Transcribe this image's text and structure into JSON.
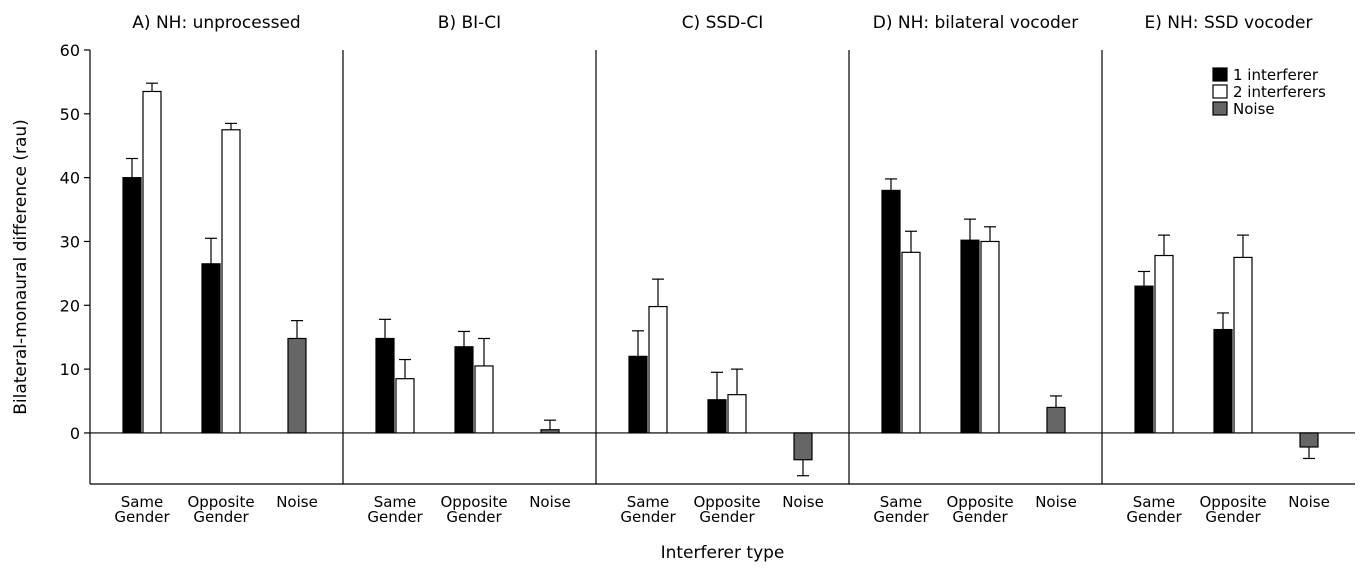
{
  "chart_data": {
    "type": "bar",
    "ylabel": "Bilateral-monaural difference (rau)",
    "xlabel": "Interferer type",
    "ylim": [
      -8,
      60
    ],
    "yticks": [
      0,
      10,
      20,
      30,
      40,
      50,
      60
    ],
    "categories": [
      "Same Gender",
      "Opposite Gender",
      "Noise"
    ],
    "category_lines": [
      [
        "Same",
        "Gender"
      ],
      [
        "Opposite",
        "Gender"
      ],
      [
        "Noise"
      ]
    ],
    "legend": {
      "placement": "top-right",
      "entries": [
        "1 interferer",
        "2 interferers",
        "Noise"
      ]
    },
    "series_colors": {
      "1 interferer": "#000000",
      "2 interferers": "#ffffff",
      "Noise": "#666666"
    },
    "panels": [
      {
        "title": "A) NH: unprocessed",
        "bars": {
          "one_interferer": [
            {
              "value": 40,
              "error": 3
            },
            {
              "value": 26.5,
              "error": 4
            }
          ],
          "two_interferers": [
            {
              "value": 53.5,
              "error": 1.3
            },
            {
              "value": 47.5,
              "error": 1
            }
          ],
          "noise": {
            "value": 14.8,
            "error": 2.8
          }
        }
      },
      {
        "title": "B) BI-CI",
        "bars": {
          "one_interferer": [
            {
              "value": 14.8,
              "error": 3
            },
            {
              "value": 13.5,
              "error": 2.4
            }
          ],
          "two_interferers": [
            {
              "value": 8.5,
              "error": 3
            },
            {
              "value": 10.5,
              "error": 4.3
            }
          ],
          "noise": {
            "value": 0.5,
            "error": 1.5
          }
        }
      },
      {
        "title": "C) SSD-CI",
        "bars": {
          "one_interferer": [
            {
              "value": 12,
              "error": 4
            },
            {
              "value": 5.2,
              "error": 4.3
            }
          ],
          "two_interferers": [
            {
              "value": 19.8,
              "error": 4.3
            },
            {
              "value": 6,
              "error": 4
            }
          ],
          "noise": {
            "value": -4.2,
            "error": 2.5
          }
        }
      },
      {
        "title": "D) NH: bilateral vocoder",
        "bars": {
          "one_interferer": [
            {
              "value": 38,
              "error": 1.8
            },
            {
              "value": 30.2,
              "error": 3.3
            }
          ],
          "two_interferers": [
            {
              "value": 28.3,
              "error": 3.3
            },
            {
              "value": 30,
              "error": 2.3
            }
          ],
          "noise": {
            "value": 4,
            "error": 1.8
          }
        }
      },
      {
        "title": "E) NH: SSD vocoder",
        "bars": {
          "one_interferer": [
            {
              "value": 23,
              "error": 2.3
            },
            {
              "value": 16.2,
              "error": 2.6
            }
          ],
          "two_interferers": [
            {
              "value": 27.8,
              "error": 3.2
            },
            {
              "value": 27.5,
              "error": 3.5
            }
          ],
          "noise": {
            "value": -2.2,
            "error": 1.8
          }
        }
      }
    ]
  }
}
